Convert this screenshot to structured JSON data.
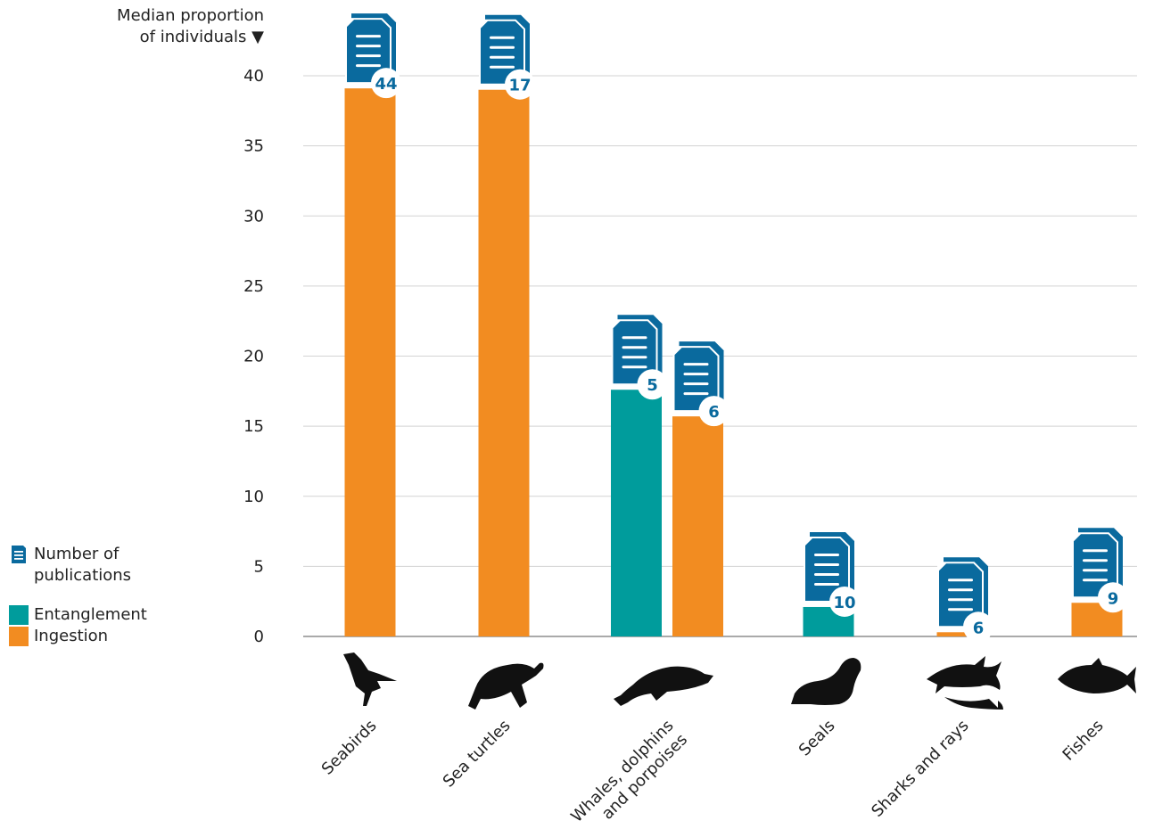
{
  "chart_data": {
    "type": "bar",
    "y_axis_label_line1": "Median proportion",
    "y_axis_label_line2": "of individuals ▼",
    "ylim": [
      0,
      40
    ],
    "y_ticks": [
      0,
      5,
      10,
      15,
      20,
      25,
      30,
      35,
      40
    ],
    "grid": true,
    "categories": [
      "Seabirds",
      "Sea turtles",
      "Whales, dolphins\nand porpoises",
      "Seals",
      "Sharks and rays",
      "Fishes"
    ],
    "category_icons": [
      "pelican-icon",
      "sea-turtle-icon",
      "whale-icon",
      "seal-icon",
      "shark-icon",
      "fish-icon"
    ],
    "series": [
      {
        "name": "Entanglement",
        "color": "#009c9c",
        "values": [
          null,
          null,
          17.6,
          2.1,
          null,
          null
        ],
        "publications": [
          null,
          null,
          5,
          10,
          null,
          null
        ]
      },
      {
        "name": "Ingestion",
        "color": "#f28c21",
        "values": [
          39.1,
          39.0,
          15.7,
          null,
          0.3,
          2.4
        ],
        "publications": [
          44,
          17,
          6,
          null,
          6,
          9
        ]
      }
    ],
    "publication_icon_color": "#0a6a9e"
  },
  "legend": {
    "publications_line1": "Number of",
    "publications_line2": "publications",
    "entanglement": "Entanglement",
    "ingestion": "Ingestion"
  }
}
